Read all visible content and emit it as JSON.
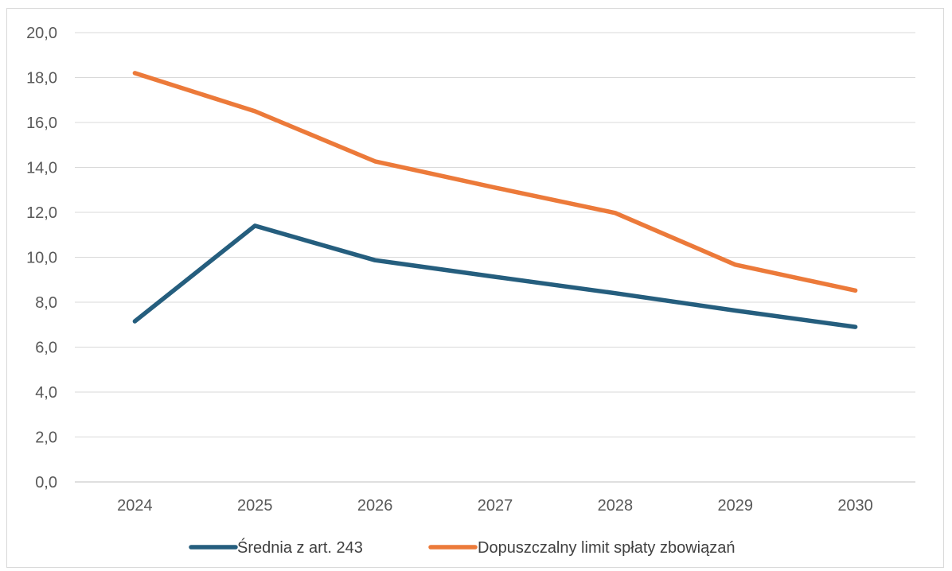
{
  "chart_data": {
    "type": "line",
    "title": "",
    "xlabel": "",
    "ylabel": "",
    "x": [
      "2024",
      "2025",
      "2026",
      "2027",
      "2028",
      "2029",
      "2030"
    ],
    "ylim": [
      0,
      20
    ],
    "yticks": [
      "0,0",
      "2,0",
      "4,0",
      "6,0",
      "8,0",
      "10,0",
      "12,0",
      "14,0",
      "16,0",
      "18,0",
      "20,0"
    ],
    "grid": true,
    "legend": "bottom",
    "series": [
      {
        "name": "Średnia z art. 243",
        "color": "#255e7e",
        "values": [
          7.15,
          11.4,
          9.87,
          9.13,
          8.4,
          7.63,
          6.9
        ]
      },
      {
        "name": "Dopuszczalny limit spłaty zbowiązań",
        "color": "#ec7a3a",
        "values": [
          18.2,
          16.5,
          14.27,
          13.1,
          11.97,
          9.67,
          8.52
        ]
      }
    ]
  }
}
